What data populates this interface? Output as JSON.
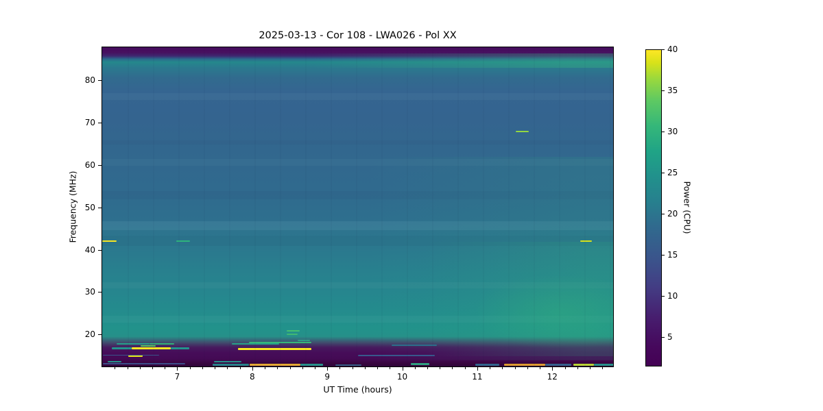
{
  "title": "2025-03-13 - Cor 108 - LWA026 - Pol XX",
  "x_axis": {
    "label": "UT Time (hours)",
    "ticks": [
      7,
      8,
      9,
      10,
      11,
      12
    ],
    "range": [
      5.99,
      12.82
    ],
    "minor_tick_step_hours": 0.1667
  },
  "y_axis": {
    "label": "Frequency (MHz)",
    "ticks": [
      20,
      30,
      40,
      50,
      60,
      70,
      80
    ],
    "range": [
      12.3,
      87.9
    ]
  },
  "colorbar": {
    "label": "Power (CPU)",
    "ticks": [
      5,
      10,
      15,
      20,
      25,
      30,
      35,
      40
    ],
    "range": [
      1.4,
      40
    ],
    "colormap": "viridis"
  },
  "chart_data": {
    "type": "heatmap",
    "title": "2025-03-13 - Cor 108 - LWA026 - Pol XX",
    "xlabel": "UT Time (hours)",
    "ylabel": "Frequency (MHz)",
    "colorbar_label": "Power (CPU)",
    "x_range_hours": [
      5.99,
      12.82
    ],
    "y_range_mhz": [
      12.3,
      87.9
    ],
    "color_range": [
      1.4,
      40
    ],
    "colormap": "viridis",
    "background_profile": [
      {
        "freq": 87.5,
        "power": 3
      },
      {
        "freq": 85.0,
        "power": 21
      },
      {
        "freq": 82.0,
        "power": 16
      },
      {
        "freq": 70.0,
        "power": 14
      },
      {
        "freq": 50.0,
        "power": 15
      },
      {
        "freq": 45.0,
        "power": 17
      },
      {
        "freq": 35.0,
        "power": 18
      },
      {
        "freq": 25.0,
        "power": 20
      },
      {
        "freq": 19.0,
        "power": 21
      },
      {
        "freq": 16.0,
        "power": 6
      },
      {
        "freq": 13.0,
        "power": 2
      }
    ],
    "time_trend": "Power at 15-50 MHz rises ~3-5 CPU after ~10.5 h (greener toward lower right); top 84-86 MHz band also brightens after ~9 h",
    "banding": [
      {
        "f0": 75.5,
        "f1": 77.0,
        "color": "rgba(165,212,222,0.06)"
      },
      {
        "f0": 60.0,
        "f1": 61.5,
        "color": "rgba(165,212,222,0.05)"
      },
      {
        "f0": 44.8,
        "f1": 46.8,
        "color": "rgba(175,218,228,0.09)"
      },
      {
        "f0": 41.0,
        "f1": 43.5,
        "color": "rgba(20,30,80,0.05)"
      },
      {
        "f0": 52.0,
        "f1": 54.0,
        "color": "rgba(20,30,80,0.04)"
      },
      {
        "f0": 65.0,
        "f1": 66.0,
        "color": "rgba(20,30,80,0.04)"
      },
      {
        "f0": 31.0,
        "f1": 32.5,
        "color": "rgba(170,220,220,0.05)"
      },
      {
        "f0": 23.0,
        "f1": 24.5,
        "color": "rgba(170,220,220,0.06)"
      }
    ],
    "enhancements": [
      {
        "t0": 8.8,
        "t1": 12.82,
        "f0": 83.0,
        "f1": 86.5,
        "type": "linear-right",
        "color": "58,190,125",
        "opacity": 0.3
      },
      {
        "t0": 9.5,
        "t1": 12.82,
        "f0": 14.0,
        "f1": 62.0,
        "type": "linear-right",
        "color": "42,170,125",
        "opacity": 0.13
      },
      {
        "t0": 10.3,
        "t1": 12.82,
        "f0": 15.0,
        "f1": 42.0,
        "type": "linear-right",
        "color": "45,178,122",
        "opacity": 0.16
      },
      {
        "t0": 11.0,
        "t1": 12.82,
        "f0": 17.0,
        "f1": 34.0,
        "type": "radial",
        "color": "53,183,121",
        "opacity": 0.3
      }
    ],
    "rfi_features": [
      {
        "t0": 5.99,
        "t1": 6.18,
        "freq": 42.2,
        "power": 38,
        "color": "#f8e621",
        "bw": 0.4
      },
      {
        "t0": 6.98,
        "t1": 7.16,
        "freq": 42.2,
        "power": 25,
        "color": "#2fb47c",
        "bw": 0.35
      },
      {
        "t0": 11.5,
        "t1": 11.68,
        "freq": 68.0,
        "power": 33,
        "color": "#93d741",
        "bw": 0.35
      },
      {
        "t0": 12.36,
        "t1": 12.52,
        "freq": 42.2,
        "power": 36,
        "color": "#d8e219",
        "bw": 0.35
      },
      {
        "t0": 8.45,
        "t1": 8.62,
        "freq": 21.0,
        "power": 28,
        "color": "#44bf70",
        "bw": 0.35
      },
      {
        "t0": 8.45,
        "t1": 8.6,
        "freq": 20.2,
        "power": 27,
        "color": "#3fb873",
        "bw": 0.35
      },
      {
        "t0": 8.6,
        "t1": 8.76,
        "freq": 18.8,
        "power": 23,
        "color": "#2da187",
        "bw": 0.3
      },
      {
        "t0": 7.95,
        "t1": 8.78,
        "freq": 18.3,
        "power": 26,
        "color": "#35b779",
        "bw": 0.35
      },
      {
        "t0": 6.18,
        "t1": 6.62,
        "freq": 17.9,
        "power": 21,
        "color": "#25a08a",
        "bw": 0.35
      },
      {
        "t0": 6.62,
        "t1": 6.95,
        "freq": 17.9,
        "power": 24,
        "color": "#31b077",
        "bw": 0.35
      },
      {
        "t0": 7.72,
        "t1": 8.35,
        "freq": 17.9,
        "power": 21,
        "color": "#26a189",
        "bw": 0.3
      },
      {
        "t0": 6.5,
        "t1": 6.7,
        "freq": 17.5,
        "power": 30,
        "color": "#5ec962",
        "bw": 0.35
      },
      {
        "t0": 6.12,
        "t1": 6.38,
        "freq": 16.9,
        "power": 20,
        "color": "#23938c",
        "bw": 0.4
      },
      {
        "t0": 6.38,
        "t1": 6.9,
        "freq": 16.9,
        "power": 40,
        "color": "#fbe723",
        "bw": 0.55
      },
      {
        "t0": 6.9,
        "t1": 7.15,
        "freq": 16.9,
        "power": 20,
        "color": "#23938c",
        "bw": 0.4
      },
      {
        "t0": 7.8,
        "t1": 8.78,
        "freq": 16.8,
        "power": 40,
        "color": "#fbe723",
        "bw": 0.5
      },
      {
        "t0": 9.85,
        "t1": 10.45,
        "freq": 17.6,
        "power": 17,
        "color": "#2c6f8a",
        "bw": 0.3
      },
      {
        "t0": 6.34,
        "t1": 6.53,
        "freq": 15.1,
        "power": 36,
        "color": "#e8e419",
        "bw": 0.4
      },
      {
        "t0": 6.0,
        "t1": 6.75,
        "freq": 15.3,
        "power": 13,
        "color": "#39568c",
        "bw": 0.3
      },
      {
        "t0": 9.4,
        "t1": 10.42,
        "freq": 15.2,
        "power": 14,
        "color": "#38598c",
        "bw": 0.3
      },
      {
        "t0": 6.06,
        "t1": 6.25,
        "freq": 13.8,
        "power": 19,
        "color": "#25938b",
        "bw": 0.35
      },
      {
        "t0": 7.48,
        "t1": 7.85,
        "freq": 13.8,
        "power": 19,
        "color": "#25938b",
        "bw": 0.35
      },
      {
        "t0": 6.0,
        "t1": 7.1,
        "freq": 13.3,
        "power": 10,
        "color": "#3d4e8a",
        "bw": 0.3
      },
      {
        "t0": 7.46,
        "t1": 7.95,
        "freq": 13.0,
        "power": 18,
        "color": "#27838a",
        "bw": 0.4
      },
      {
        "t0": 7.96,
        "t1": 8.63,
        "freq": 13.0,
        "power": 38,
        "color": "#e3a934",
        "bw": 0.45
      },
      {
        "t0": 8.63,
        "t1": 8.93,
        "freq": 13.0,
        "power": 20,
        "color": "#27918a",
        "bw": 0.4
      },
      {
        "t0": 9.1,
        "t1": 9.45,
        "freq": 13.0,
        "power": 14,
        "color": "#355e84",
        "bw": 0.35
      },
      {
        "t0": 10.1,
        "t1": 10.35,
        "freq": 13.2,
        "power": 22,
        "color": "#2fa080",
        "bw": 0.35
      },
      {
        "t0": 10.96,
        "t1": 11.28,
        "freq": 13.0,
        "power": 15,
        "color": "#31648c",
        "bw": 0.4
      },
      {
        "t0": 11.35,
        "t1": 11.9,
        "freq": 13.0,
        "power": 37,
        "color": "#dc9b30",
        "bw": 0.45
      },
      {
        "t0": 11.9,
        "t1": 12.24,
        "freq": 13.0,
        "power": 14,
        "color": "#35608b",
        "bw": 0.4
      },
      {
        "t0": 12.27,
        "t1": 12.55,
        "freq": 13.0,
        "power": 34,
        "color": "#b8d435",
        "bw": 0.4
      },
      {
        "t0": 12.55,
        "t1": 12.82,
        "freq": 13.0,
        "power": 20,
        "color": "#27918a",
        "bw": 0.4
      }
    ]
  }
}
